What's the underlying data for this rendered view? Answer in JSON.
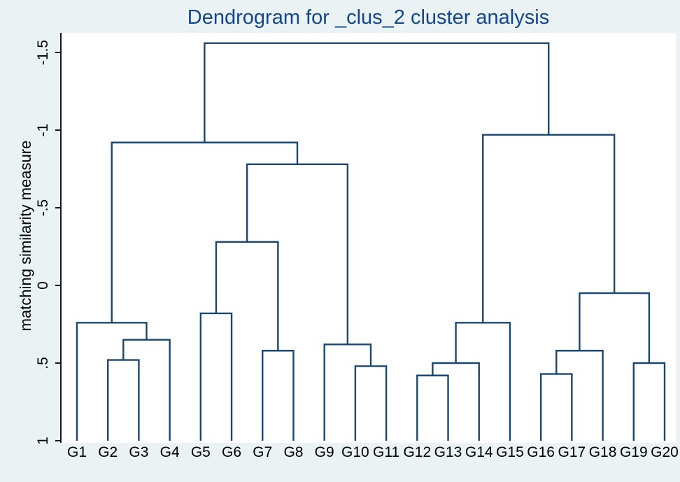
{
  "chart_data": {
    "type": "dendrogram",
    "title": "Dendrogram for _clus_2 cluster analysis",
    "ylabel": "matching similarity measure",
    "y_axis": {
      "ticks": [
        -1.5,
        -1,
        -0.5,
        0,
        0.5,
        1
      ],
      "tick_labels": [
        "-1.5",
        "-1",
        "-.5",
        "0",
        ".5",
        "1"
      ],
      "range_top": -1.5,
      "range_bottom": 1,
      "inverted": true,
      "grid": false
    },
    "leaves": [
      "G1",
      "G2",
      "G3",
      "G4",
      "G5",
      "G6",
      "G7",
      "G8",
      "G9",
      "G10",
      "G11",
      "G12",
      "G13",
      "G14",
      "G15",
      "G16",
      "G17",
      "G18",
      "G19",
      "G20"
    ],
    "leaf_base_value": 1,
    "merges": [
      {
        "id": "M1",
        "children": [
          "G2",
          "G3"
        ],
        "height": 0.48
      },
      {
        "id": "M2",
        "children": [
          "M1",
          "G4"
        ],
        "height": 0.35
      },
      {
        "id": "M3",
        "children": [
          "G1",
          "M2"
        ],
        "height": 0.24
      },
      {
        "id": "M4",
        "children": [
          "G5",
          "G6"
        ],
        "height": 0.18
      },
      {
        "id": "M5",
        "children": [
          "G7",
          "G8"
        ],
        "height": 0.42
      },
      {
        "id": "M6",
        "children": [
          "M4",
          "M5"
        ],
        "height": -0.28
      },
      {
        "id": "M7",
        "children": [
          "G10",
          "G11"
        ],
        "height": 0.52
      },
      {
        "id": "M8",
        "children": [
          "G9",
          "M7"
        ],
        "height": 0.38
      },
      {
        "id": "M9",
        "children": [
          "M6",
          "M8"
        ],
        "height": -0.78
      },
      {
        "id": "M10",
        "children": [
          "M3",
          "M9"
        ],
        "height": -0.92
      },
      {
        "id": "M11",
        "children": [
          "G12",
          "G13"
        ],
        "height": 0.58
      },
      {
        "id": "M12",
        "children": [
          "M11",
          "G14"
        ],
        "height": 0.5
      },
      {
        "id": "M13",
        "children": [
          "M12",
          "G15"
        ],
        "height": 0.24
      },
      {
        "id": "M14",
        "children": [
          "G16",
          "G17"
        ],
        "height": 0.57
      },
      {
        "id": "M15",
        "children": [
          "M14",
          "G18"
        ],
        "height": 0.42
      },
      {
        "id": "M16",
        "children": [
          "G19",
          "G20"
        ],
        "height": 0.5
      },
      {
        "id": "M17",
        "children": [
          "M15",
          "M16"
        ],
        "height": 0.05
      },
      {
        "id": "M18",
        "children": [
          "M13",
          "M17"
        ],
        "height": -0.97
      },
      {
        "id": "ROOT",
        "children": [
          "M10",
          "M18"
        ],
        "height": -1.56
      }
    ],
    "colors": {
      "background": "#eaf2f3",
      "plot_background": "#ffffff",
      "line": "#1a476f",
      "title": "#13478c",
      "axis": "#000000",
      "text": "#000000"
    }
  }
}
